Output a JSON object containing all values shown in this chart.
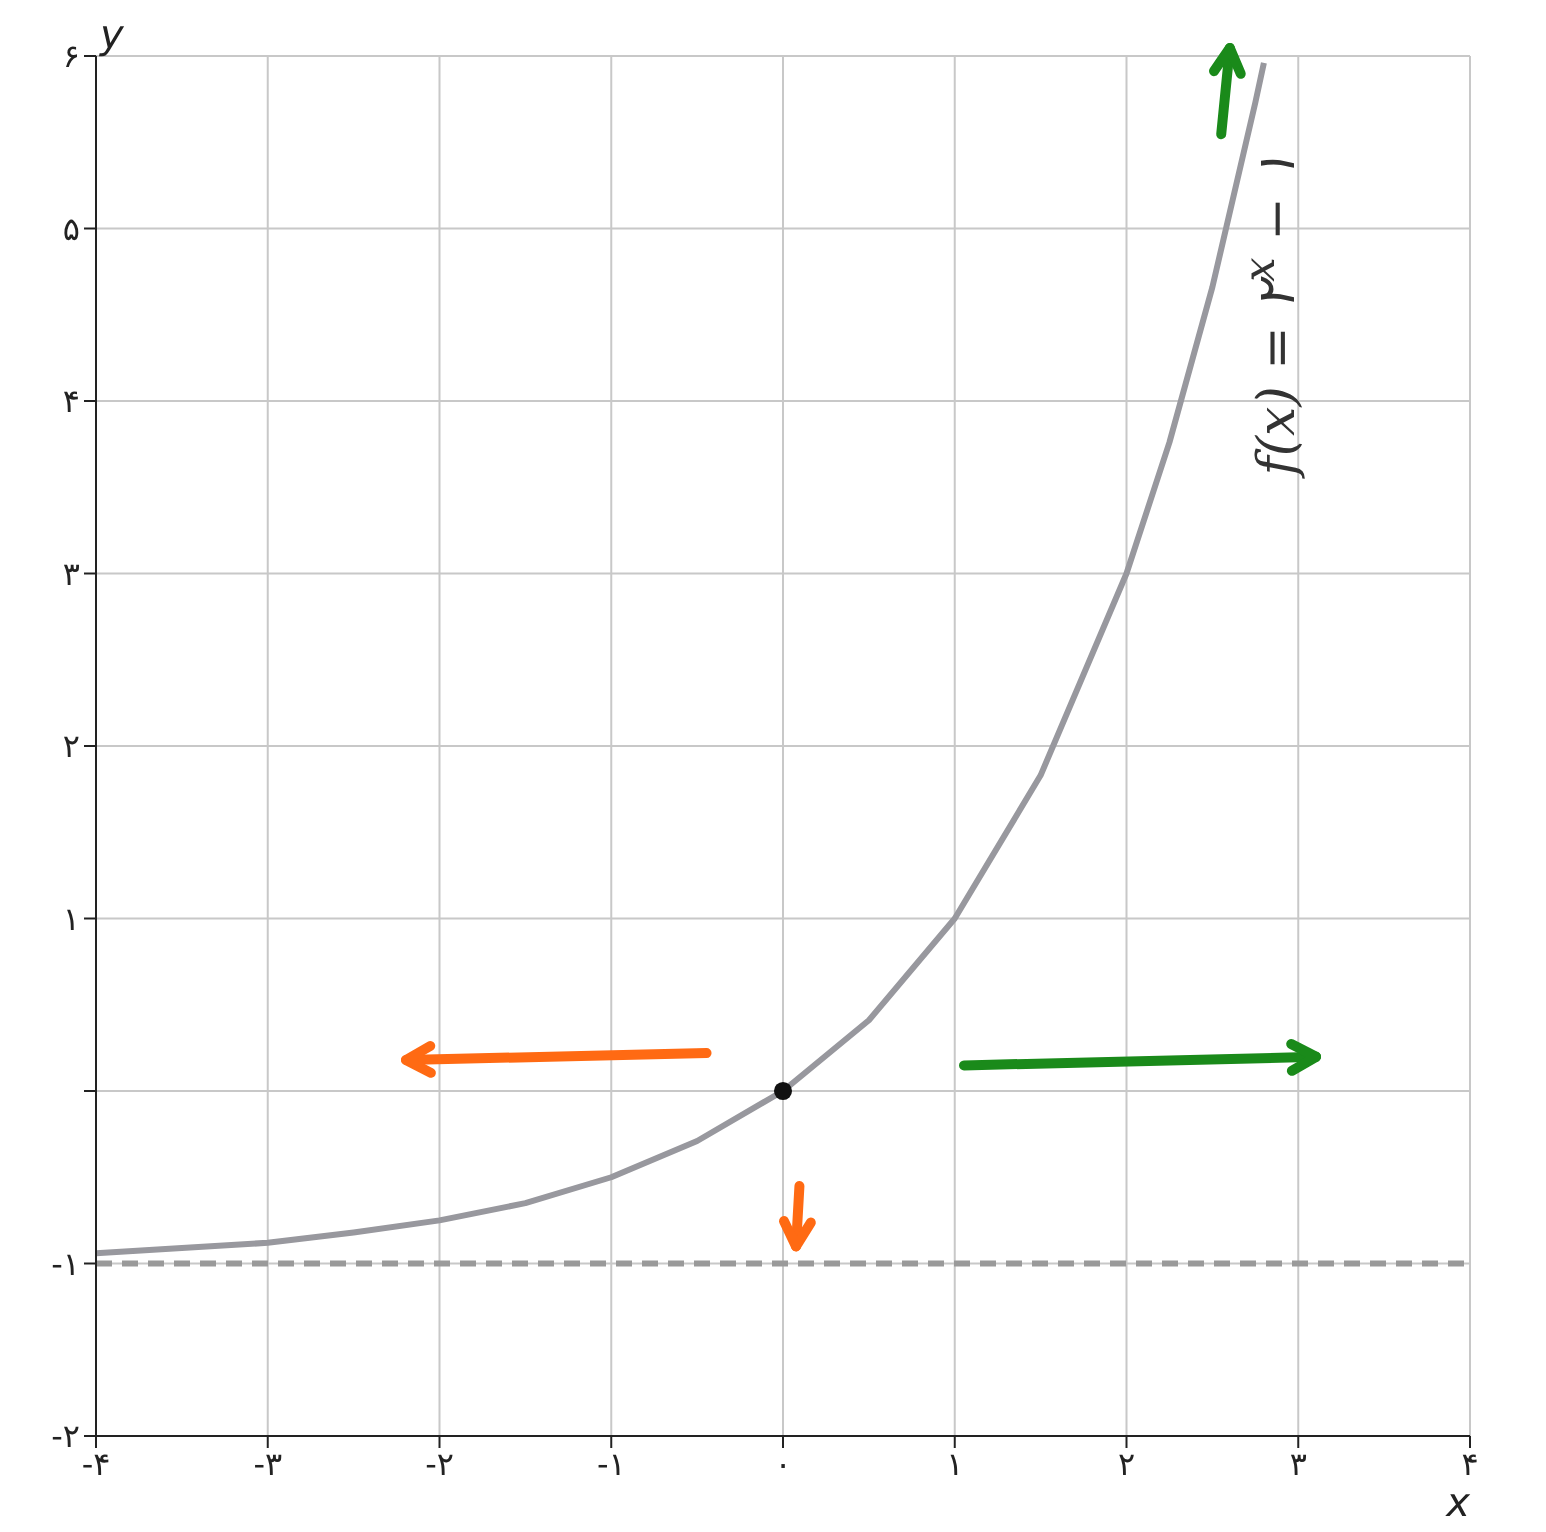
{
  "chart_data": {
    "type": "line",
    "xlabel": "x",
    "ylabel": "y",
    "annotations": [
      "f(x) = ۲$^{x}$ − ۱"
    ],
    "xlim": [
      -4,
      4
    ],
    "ylim": [
      -2,
      6
    ],
    "xticks": [
      {
        "value": -4,
        "label": "-۴"
      },
      {
        "value": -3,
        "label": "-۳"
      },
      {
        "value": -2,
        "label": "-۲"
      },
      {
        "value": -1,
        "label": "-۱"
      },
      {
        "value": 0,
        "label": "۰"
      },
      {
        "value": 1,
        "label": "۱"
      },
      {
        "value": 2,
        "label": "۲"
      },
      {
        "value": 3,
        "label": "۳"
      },
      {
        "value": 4,
        "label": "۴"
      }
    ],
    "yticks": [
      {
        "value": -2,
        "label": "-۲"
      },
      {
        "value": -1,
        "label": "-۱"
      },
      {
        "value": 0,
        "label": null
      },
      {
        "value": 1,
        "label": "۱"
      },
      {
        "value": 2,
        "label": "۲"
      },
      {
        "value": 3,
        "label": "۳"
      },
      {
        "value": 4,
        "label": "۴"
      },
      {
        "value": 5,
        "label": "۵"
      },
      {
        "value": 6,
        "label": "۶"
      }
    ],
    "grid": true,
    "legend": false,
    "ref_lines": [
      {
        "axis": "y",
        "value": -1,
        "label": null,
        "color": "#9a9a9a",
        "line_style": "dashed"
      }
    ],
    "series": [
      {
        "color": "#98989e",
        "marker": "none",
        "x": [
          -4,
          -3.5,
          -3,
          -2.5,
          -2,
          -1.5,
          -1,
          -0.5,
          0,
          0.5,
          1,
          1.5,
          2,
          2.25,
          2.5,
          2.75,
          2.8
        ],
        "values": [
          -0.94,
          -0.91,
          -0.88,
          -0.82,
          -0.75,
          -0.65,
          -0.5,
          -0.29,
          0,
          0.41,
          1,
          1.83,
          3,
          3.76,
          4.66,
          5.73,
          5.96
        ]
      },
      {
        "type": "scatter",
        "color": "#111111",
        "marker": "circle",
        "x": [
          0
        ],
        "values": [
          0
        ]
      }
    ]
  }
}
